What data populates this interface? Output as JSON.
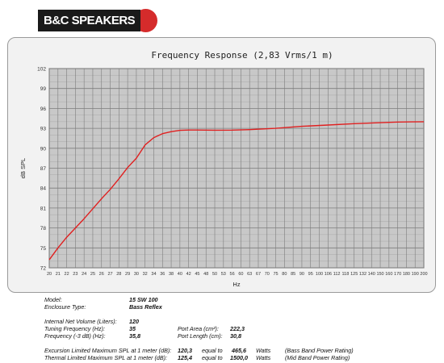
{
  "logo": {
    "text": "B&C SPEAKERS"
  },
  "chart_data": {
    "type": "line",
    "title": "Frequency Response (2,83 Vrms/1 m)",
    "xlabel": "Hz",
    "ylabel": "dB SPL",
    "grid": true,
    "ylim": [
      72,
      102
    ],
    "y_ticks": [
      72,
      75,
      78,
      81,
      84,
      87,
      90,
      93,
      96,
      99,
      102
    ],
    "x_ticks": [
      20,
      21,
      22,
      23,
      24,
      25,
      26,
      27,
      28,
      29,
      30,
      32,
      34,
      36,
      38,
      40,
      42,
      45,
      48,
      50,
      53,
      56,
      60,
      63,
      67,
      70,
      75,
      80,
      85,
      90,
      95,
      100,
      106,
      112,
      118,
      125,
      132,
      140,
      150,
      160,
      170,
      180,
      190,
      200
    ],
    "series": [
      {
        "color": "#e02020",
        "x": [
          20,
          21,
          22,
          23,
          24,
          25,
          26,
          27,
          28,
          29,
          30,
          32,
          34,
          36,
          38,
          40,
          42,
          45,
          48,
          50,
          56,
          63,
          75,
          90,
          106,
          125,
          150,
          170,
          200
        ],
        "y": [
          73.2,
          75.0,
          76.6,
          78.0,
          79.4,
          80.9,
          82.4,
          83.8,
          85.4,
          87.1,
          88.5,
          90.5,
          91.6,
          92.2,
          92.5,
          92.7,
          92.75,
          92.75,
          92.73,
          92.72,
          92.73,
          92.8,
          93.0,
          93.3,
          93.5,
          93.7,
          93.85,
          93.95,
          94.0
        ]
      }
    ]
  },
  "specs": {
    "model_label": "Model:",
    "model_value": "15 SW 100",
    "enclosure_label": "Enclosure Type:",
    "enclosure_value": "Bass Reflex",
    "volume_label": "Internal Net Volume (Liters):",
    "volume_value": "120",
    "tuning_label": "Tuning Frequency (Hz):",
    "tuning_value": "35",
    "f3_label": "Frequency (-3 dB) (Hz):",
    "f3_value": "35,8",
    "port_area_label": "Port Area (cm²):",
    "port_area_value": "222,3",
    "port_length_label": "Port Length (cm):",
    "port_length_value": "30,8",
    "excursion_label": "Excursion Limited Maximum SPL at 1 meter (dB):",
    "excursion_value": "120,3",
    "excursion_equal": "equal to",
    "excursion_watts": "465,6",
    "excursion_unit": "Watts",
    "excursion_note": "(Bass Band Power Rating)",
    "thermal_label": "Thermal Limited Maximum SPL at 1 meter (dB):",
    "thermal_value": "125,4",
    "thermal_equal": "equal to",
    "thermal_watts": "1500,0",
    "thermal_unit": "Watts",
    "thermal_note": "(Mid Band Power Rating)"
  }
}
